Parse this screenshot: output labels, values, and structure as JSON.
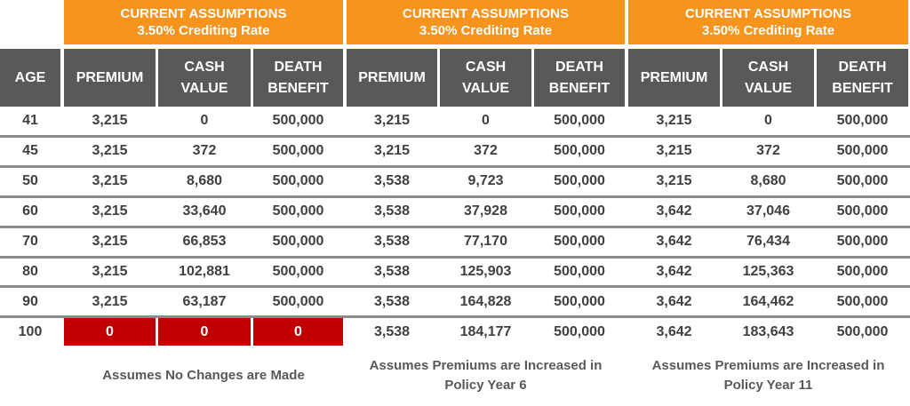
{
  "header": {
    "age": "AGE"
  },
  "groups": [
    {
      "title": "CURRENT ASSUMPTIONS",
      "subtitle": "3.50% Crediting Rate",
      "columns": [
        "PREMIUM",
        "CASH VALUE",
        "DEATH BENEFIT"
      ],
      "note": "Assumes No Changes are Made"
    },
    {
      "title": "CURRENT ASSUMPTIONS",
      "subtitle": "3.50% Crediting Rate",
      "columns": [
        "PREMIUM",
        "CASH VALUE",
        "DEATH BENEFIT"
      ],
      "note": "Assumes Premiums are Increased in Policy Year 6"
    },
    {
      "title": "CURRENT ASSUMPTIONS",
      "subtitle": "3.50% Crediting Rate",
      "columns": [
        "PREMIUM",
        "CASH VALUE",
        "DEATH BENEFIT"
      ],
      "note": "Assumes Premiums are Increased in Policy Year 11"
    }
  ],
  "rows": [
    [
      "41",
      "3,215",
      "0",
      "500,000",
      "3,215",
      "0",
      "500,000",
      "3,215",
      "0",
      "500,000"
    ],
    [
      "45",
      "3,215",
      "372",
      "500,000",
      "3,215",
      "372",
      "500,000",
      "3,215",
      "372",
      "500,000"
    ],
    [
      "50",
      "3,215",
      "8,680",
      "500,000",
      "3,538",
      "9,723",
      "500,000",
      "3,215",
      "8,680",
      "500,000"
    ],
    [
      "60",
      "3,215",
      "33,640",
      "500,000",
      "3,538",
      "37,928",
      "500,000",
      "3,642",
      "37,046",
      "500,000"
    ],
    [
      "70",
      "3,215",
      "66,853",
      "500,000",
      "3,538",
      "77,170",
      "500,000",
      "3,642",
      "76,434",
      "500,000"
    ],
    [
      "80",
      "3,215",
      "102,881",
      "500,000",
      "3,538",
      "125,903",
      "500,000",
      "3,642",
      "125,363",
      "500,000"
    ],
    [
      "90",
      "3,215",
      "63,187",
      "500,000",
      "3,538",
      "164,828",
      "500,000",
      "3,642",
      "164,462",
      "500,000"
    ],
    [
      "100",
      "0",
      "0",
      "0",
      "3,538",
      "184,177",
      "500,000",
      "3,642",
      "183,643",
      "500,000"
    ]
  ]
}
